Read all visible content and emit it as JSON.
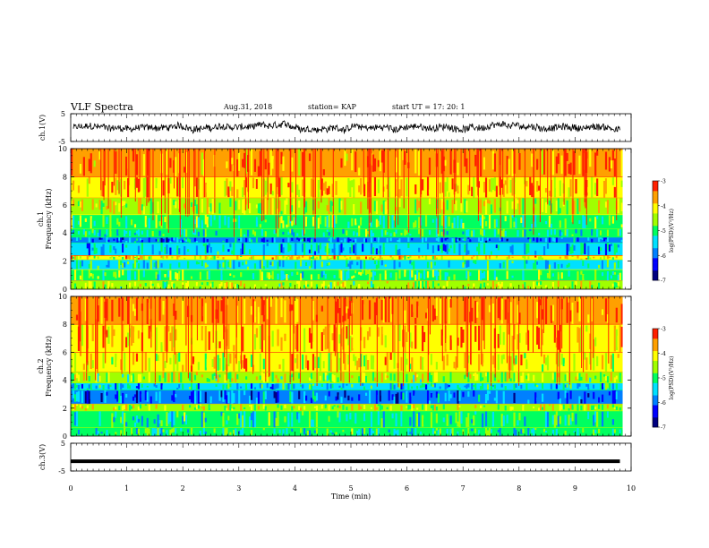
{
  "header": {
    "title": "VLF Spectra",
    "date": "Aug.31, 2018",
    "station": "station= KAP",
    "start": "start  UT =   17: 20: 1"
  },
  "colors": {
    "axis": "#000000",
    "trace": "#000000",
    "colormap": [
      "#000080",
      "#0000ff",
      "#0080ff",
      "#00e0ff",
      "#00ff60",
      "#a0ff00",
      "#ffff00",
      "#ffa000",
      "#ff2000",
      "#ffffff"
    ]
  },
  "chart_data": [
    {
      "type": "line",
      "panel": "ch1-waveform",
      "ylabel": "ch.1(V)",
      "ylim": [
        -5,
        5
      ],
      "yticks": [
        "5",
        "-5"
      ],
      "xlim": [
        0,
        10
      ],
      "series": [
        {
          "amplitude_range": [
            -2.5,
            2.5
          ],
          "note_values": "noisy trace centered near 0 V spanning roughly -2.5 to +2.5 V over 0–9.8 min"
        }
      ]
    },
    {
      "type": "heatmap",
      "panel": "ch1-spectrogram",
      "ylabel": "ch.1\nFrequency (kHz)",
      "xlim": [
        0,
        9.85
      ],
      "ylim": [
        0,
        10
      ],
      "yticks": [
        "0",
        "2",
        "4",
        "6",
        "8",
        "10"
      ],
      "colorbar": {
        "label": "log(PSD)(V²/Hz)",
        "range": [
          -7,
          -3
        ],
        "ticks": [
          "-3",
          "-4",
          "-5",
          "-6",
          "-7"
        ]
      },
      "bands": [
        {
          "from": 0.0,
          "to": 0.6,
          "level": -4.6
        },
        {
          "from": 0.6,
          "to": 1.4,
          "level": -5.0
        },
        {
          "from": 1.4,
          "to": 2.1,
          "level": -5.3
        },
        {
          "from": 2.1,
          "to": 2.4,
          "level": -4.2
        },
        {
          "from": 2.4,
          "to": 3.3,
          "level": -5.6
        },
        {
          "from": 3.3,
          "to": 3.7,
          "level": -5.9
        },
        {
          "from": 3.7,
          "to": 4.3,
          "level": -5.2
        },
        {
          "from": 4.3,
          "to": 5.3,
          "level": -4.9
        },
        {
          "from": 5.3,
          "to": 6.5,
          "level": -4.4
        },
        {
          "from": 6.5,
          "to": 8.0,
          "level": -4.0
        },
        {
          "from": 8.0,
          "to": 10.0,
          "level": -3.7
        }
      ]
    },
    {
      "type": "heatmap",
      "panel": "ch2-spectrogram",
      "ylabel": "ch.2\nFrequency (kHz)",
      "xlim": [
        0,
        9.85
      ],
      "ylim": [
        0,
        10
      ],
      "yticks": [
        "0",
        "2",
        "4",
        "6",
        "8",
        "10"
      ],
      "colorbar": {
        "label": "log(PSD)(V²/Hz)",
        "range": [
          -7,
          -3
        ],
        "ticks": [
          "-3",
          "-4",
          "-5",
          "-6",
          "-7"
        ]
      },
      "bands": [
        {
          "from": 0.0,
          "to": 0.6,
          "level": -5.2
        },
        {
          "from": 0.6,
          "to": 1.8,
          "level": -5.2
        },
        {
          "from": 1.8,
          "to": 2.3,
          "level": -4.5
        },
        {
          "from": 2.3,
          "to": 3.3,
          "level": -6.0
        },
        {
          "from": 3.3,
          "to": 3.8,
          "level": -5.5
        },
        {
          "from": 3.8,
          "to": 4.6,
          "level": -4.6
        },
        {
          "from": 4.6,
          "to": 6.0,
          "level": -4.2
        },
        {
          "from": 6.0,
          "to": 8.0,
          "level": -3.9
        },
        {
          "from": 8.0,
          "to": 10.0,
          "level": -3.6
        }
      ]
    },
    {
      "type": "line",
      "panel": "ch3-waveform",
      "ylabel": "ch.3(V)",
      "ylim": [
        -5,
        5
      ],
      "yticks": [
        "5",
        "-5"
      ],
      "xlim": [
        0,
        10
      ],
      "series": [
        {
          "values_constant": -1.5,
          "note_values": "flat thick line near -1.5 V from 0 to 9.8 min"
        }
      ]
    }
  ],
  "xaxis": {
    "label": "Time (min)",
    "ticks": [
      "0",
      "1",
      "2",
      "3",
      "4",
      "5",
      "6",
      "7",
      "8",
      "9",
      "10"
    ]
  }
}
